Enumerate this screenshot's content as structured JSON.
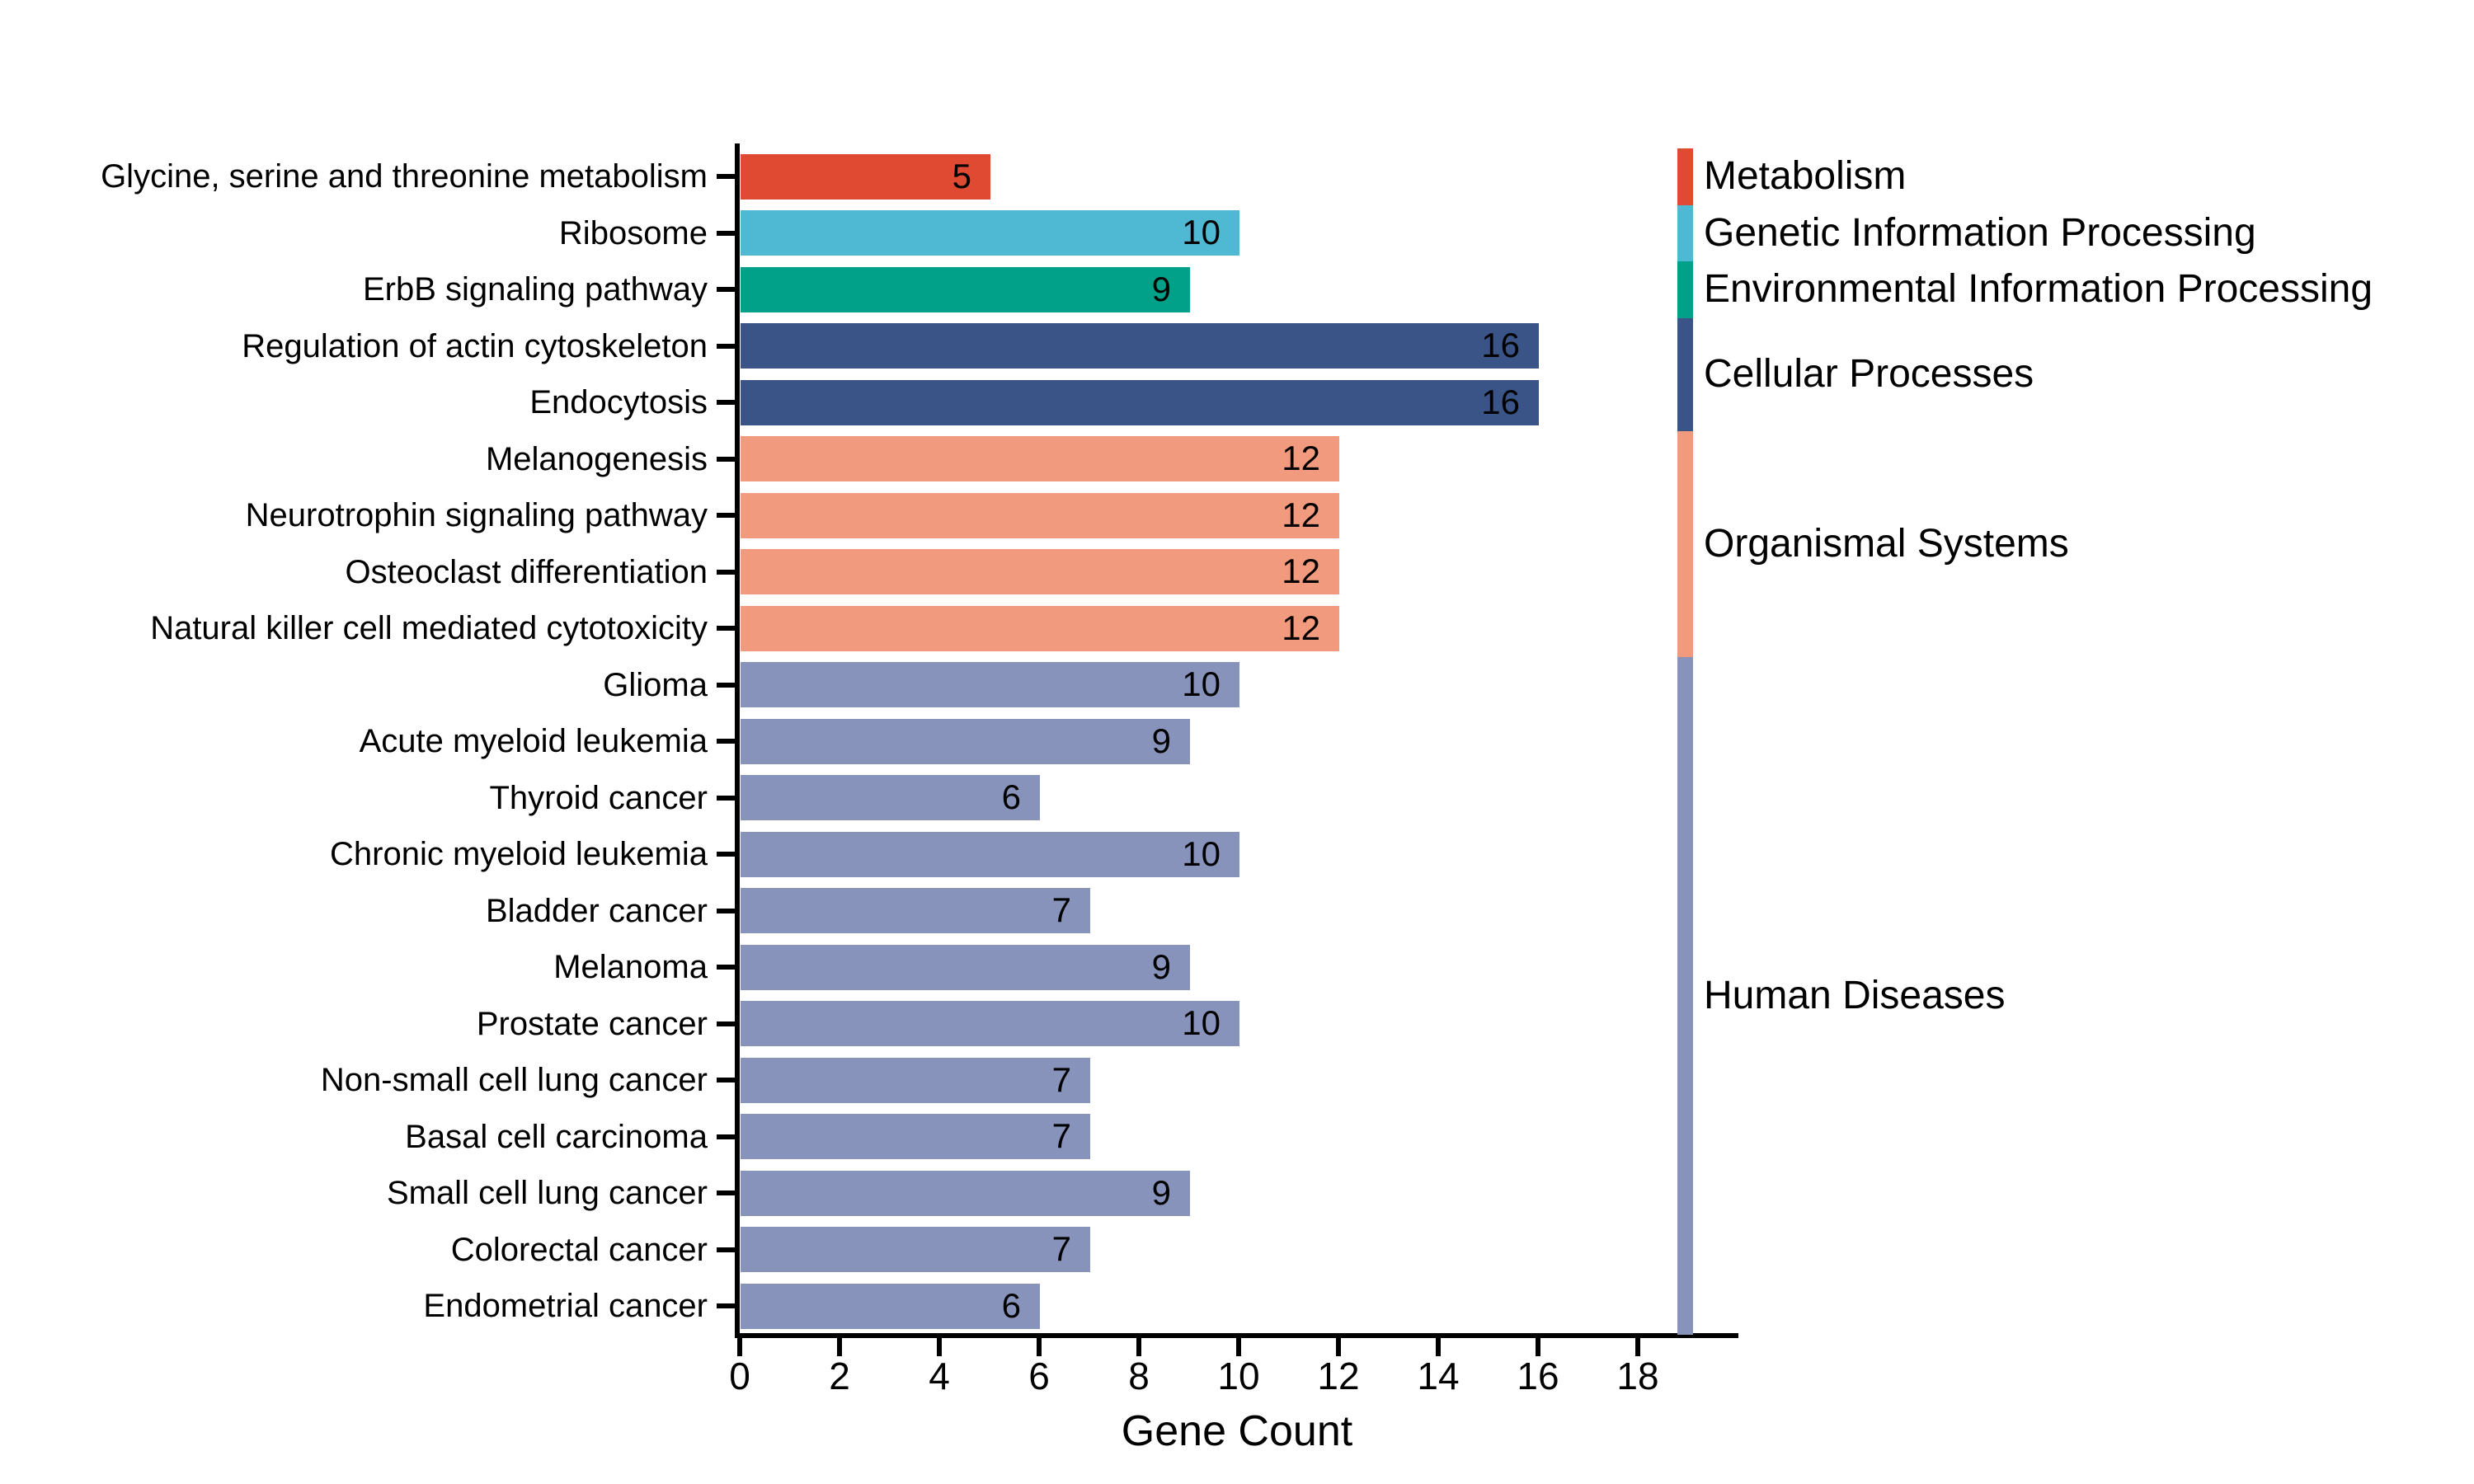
{
  "chart_data": {
    "type": "bar",
    "orientation": "horizontal",
    "title": "",
    "xlabel": "Gene Count",
    "ylabel": "",
    "xlim": [
      0,
      19.9
    ],
    "xticks": [
      0,
      2,
      4,
      6,
      8,
      10,
      12,
      14,
      16,
      18
    ],
    "grid": false,
    "value_labels": "inside-right",
    "legend_position": "right-vertical-stacked-bar",
    "rows": [
      {
        "label": "Glycine, serine and threonine metabolism",
        "value": 5,
        "group": "Metabolism"
      },
      {
        "label": "Ribosome",
        "value": 10,
        "group": "Genetic Information Processing"
      },
      {
        "label": "ErbB signaling pathway",
        "value": 9,
        "group": "Environmental Information Processing"
      },
      {
        "label": "Regulation of actin cytoskeleton",
        "value": 16,
        "group": "Cellular Processes"
      },
      {
        "label": "Endocytosis",
        "value": 16,
        "group": "Cellular Processes"
      },
      {
        "label": "Melanogenesis",
        "value": 12,
        "group": "Organismal Systems"
      },
      {
        "label": "Neurotrophin signaling pathway",
        "value": 12,
        "group": "Organismal Systems"
      },
      {
        "label": "Osteoclast differentiation",
        "value": 12,
        "group": "Organismal Systems"
      },
      {
        "label": "Natural killer cell mediated cytotoxicity",
        "value": 12,
        "group": "Organismal Systems"
      },
      {
        "label": "Glioma",
        "value": 10,
        "group": "Human Diseases"
      },
      {
        "label": "Acute myeloid leukemia",
        "value": 9,
        "group": "Human Diseases"
      },
      {
        "label": "Thyroid cancer",
        "value": 6,
        "group": "Human Diseases"
      },
      {
        "label": "Chronic myeloid leukemia",
        "value": 10,
        "group": "Human Diseases"
      },
      {
        "label": "Bladder cancer",
        "value": 7,
        "group": "Human Diseases"
      },
      {
        "label": "Melanoma",
        "value": 9,
        "group": "Human Diseases"
      },
      {
        "label": "Prostate cancer",
        "value": 10,
        "group": "Human Diseases"
      },
      {
        "label": "Non-small cell lung cancer",
        "value": 7,
        "group": "Human Diseases"
      },
      {
        "label": "Basal cell carcinoma",
        "value": 7,
        "group": "Human Diseases"
      },
      {
        "label": "Small cell lung cancer",
        "value": 9,
        "group": "Human Diseases"
      },
      {
        "label": "Colorectal cancer",
        "value": 7,
        "group": "Human Diseases"
      },
      {
        "label": "Endometrial cancer",
        "value": 6,
        "group": "Human Diseases"
      }
    ],
    "legend": [
      {
        "label": "Metabolism",
        "color": "#e04a33"
      },
      {
        "label": "Genetic Information Processing",
        "color": "#4fb9d3"
      },
      {
        "label": "Environmental Information Processing",
        "color": "#00a089"
      },
      {
        "label": "Cellular Processes",
        "color": "#3a5487"
      },
      {
        "label": "Organismal Systems",
        "color": "#f19a7e"
      },
      {
        "label": "Human Diseases",
        "color": "#8793ba"
      }
    ],
    "colors": {
      "axis": "#000000",
      "text": "#000000",
      "background": "#ffffff"
    }
  }
}
